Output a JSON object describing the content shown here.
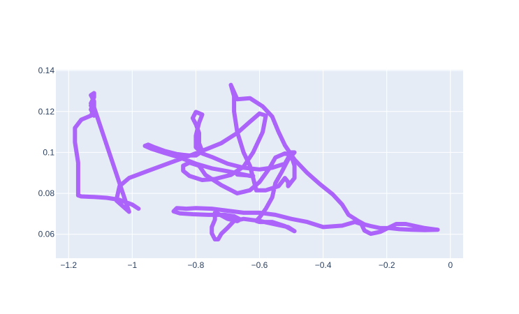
{
  "chart_data": {
    "type": "line",
    "title": "",
    "xlabel": "",
    "ylabel": "",
    "xlim": [
      -1.24,
      0.04
    ],
    "ylim": [
      0.0483,
      0.1404
    ],
    "xticks": [
      -1.2,
      -1,
      -0.8,
      -0.6,
      -0.4,
      -0.2,
      0
    ],
    "xtick_labels": [
      "−1.2",
      "−1",
      "−0.8",
      "−0.6",
      "−0.4",
      "−0.2",
      "0"
    ],
    "yticks": [
      0.06,
      0.08,
      0.1,
      0.12,
      0.14
    ],
    "ytick_labels": [
      "0.06",
      "0.08",
      "0.1",
      "0.12",
      "0.14"
    ],
    "grid": true,
    "colors": {
      "plot_bg": "#e5ecf6",
      "grid": "#ffffff",
      "line": "#ab63fa",
      "tick_text": "#2a3f5f"
    },
    "series": [
      {
        "x": [
          -0.98,
          -1.0,
          -1.04,
          -1.08,
          -1.12,
          -1.16,
          -1.17,
          -1.17,
          -1.17,
          -1.18,
          -1.18,
          -1.16,
          -1.13,
          -1.12,
          -1.12,
          -1.13,
          -1.12,
          -1.12,
          -1.13,
          -1.12,
          -1.12,
          -1.13,
          -1.12,
          -1.13,
          -1.12,
          -1.12,
          -1.01,
          -1.05,
          -1.04,
          -1.01,
          -0.95,
          -0.88,
          -0.81,
          -0.76,
          -0.72,
          -0.69,
          -0.67,
          -0.63,
          -0.6,
          -0.58,
          -0.59,
          -0.62,
          -0.65,
          -0.69,
          -0.74,
          -0.78,
          -0.82,
          -0.84,
          -0.84,
          -0.82,
          -0.79,
          -0.77,
          -0.72,
          -0.67,
          -0.63,
          -0.6,
          -0.57,
          -0.55,
          -0.52,
          -0.5,
          -0.49,
          -0.49,
          -0.5,
          -0.51,
          -0.51,
          -0.52,
          -0.54,
          -0.58,
          -0.61,
          -0.62,
          -0.63,
          -0.65,
          -0.67,
          -0.68,
          -0.68,
          -0.69,
          -0.67,
          -0.63,
          -0.59,
          -0.56,
          -0.54,
          -0.52,
          -0.49,
          -0.45,
          -0.41,
          -0.37,
          -0.34,
          -0.32,
          -0.29,
          -0.27,
          -0.25,
          -0.22,
          -0.19,
          -0.16,
          -0.12,
          -0.08,
          -0.04,
          -0.08,
          -0.11,
          -0.14,
          -0.17,
          -0.19,
          -0.22,
          -0.25,
          -0.27,
          -0.28,
          -0.3,
          -0.34,
          -0.4,
          -0.45,
          -0.5,
          -0.55,
          -0.6,
          -0.65,
          -0.7,
          -0.75,
          -0.8,
          -0.83,
          -0.86,
          -0.87,
          -0.85,
          -0.81,
          -0.76,
          -0.71,
          -0.68,
          -0.66,
          -0.67,
          -0.7,
          -0.73,
          -0.74,
          -0.74,
          -0.75,
          -0.75,
          -0.74,
          -0.73,
          -0.72,
          -0.7,
          -0.68,
          -0.65,
          -0.6,
          -0.55,
          -0.51,
          -0.49,
          -0.52,
          -0.56,
          -0.6,
          -0.61,
          -0.6,
          -0.58,
          -0.56,
          -0.55,
          -0.53,
          -0.51,
          -0.49,
          -0.5,
          -0.52,
          -0.56,
          -0.6,
          -0.65,
          -0.7,
          -0.75,
          -0.78,
          -0.8,
          -0.8,
          -0.79,
          -0.78,
          -0.8,
          -0.81,
          -0.8,
          -0.79,
          -0.79,
          -0.78,
          -0.8,
          -0.82,
          -0.86,
          -0.9,
          -0.93,
          -0.95,
          -0.96,
          -0.94,
          -0.9,
          -0.85,
          -0.8,
          -0.75,
          -0.7,
          -0.66,
          -0.63,
          -0.62,
          -0.64,
          -0.67
        ],
        "y": [
          0.0725,
          0.0745,
          0.0768,
          0.0778,
          0.0782,
          0.0785,
          0.079,
          0.085,
          0.095,
          0.105,
          0.112,
          0.116,
          0.118,
          0.121,
          0.125,
          0.128,
          0.129,
          0.127,
          0.124,
          0.122,
          0.125,
          0.123,
          0.118,
          0.121,
          0.124,
          0.122,
          0.071,
          0.0765,
          0.0835,
          0.0875,
          0.091,
          0.095,
          0.099,
          0.102,
          0.1045,
          0.1075,
          0.1095,
          0.115,
          0.119,
          0.118,
          0.11,
          0.1,
          0.093,
          0.089,
          0.087,
          0.0865,
          0.0885,
          0.091,
          0.0935,
          0.095,
          0.0935,
          0.089,
          0.084,
          0.08,
          0.0815,
          0.0855,
          0.092,
          0.0975,
          0.0995,
          0.0985,
          0.0935,
          0.0875,
          0.0855,
          0.0835,
          0.0855,
          0.0875,
          0.0835,
          0.0815,
          0.0815,
          0.0875,
          0.0935,
          0.1,
          0.11,
          0.12,
          0.1275,
          0.133,
          0.126,
          0.1265,
          0.1225,
          0.1175,
          0.11,
          0.1035,
          0.0965,
          0.09,
          0.0845,
          0.0795,
          0.0745,
          0.0695,
          0.0665,
          0.0648,
          0.064,
          0.063,
          0.063,
          0.0625,
          0.0622,
          0.062,
          0.0622,
          0.063,
          0.064,
          0.065,
          0.065,
          0.0635,
          0.0612,
          0.0602,
          0.0618,
          0.065,
          0.066,
          0.0642,
          0.0635,
          0.066,
          0.0675,
          0.0695,
          0.0705,
          0.0705,
          0.0715,
          0.0725,
          0.0728,
          0.0725,
          0.0728,
          0.0712,
          0.0702,
          0.0698,
          0.0695,
          0.0695,
          0.0688,
          0.0672,
          0.0664,
          0.0675,
          0.07,
          0.0705,
          0.0672,
          0.0635,
          0.0605,
          0.0575,
          0.0575,
          0.0602,
          0.0632,
          0.0665,
          0.0675,
          0.0665,
          0.0648,
          0.0635,
          0.0615,
          0.064,
          0.066,
          0.066,
          0.0665,
          0.0682,
          0.0725,
          0.078,
          0.085,
          0.0905,
          0.0965,
          0.1,
          0.1,
          0.0945,
          0.0925,
          0.0917,
          0.0925,
          0.0945,
          0.0978,
          0.0995,
          0.1025,
          0.1082,
          0.1145,
          0.1185,
          0.1198,
          0.1168,
          0.1138,
          0.1095,
          0.1045,
          0.1005,
          0.0985,
          0.0985,
          0.0992,
          0.1008,
          0.1025,
          0.1038,
          0.1032,
          0.1018,
          0.0998,
          0.0975,
          0.0945,
          0.0922,
          0.0908,
          0.0895,
          0.0885,
          0.0885,
          0.0888,
          0.0892
        ],
        "color": "#ab63fa"
      }
    ]
  }
}
